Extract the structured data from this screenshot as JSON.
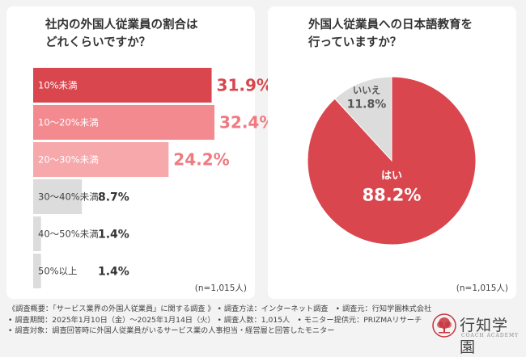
{
  "charts": [
    {
      "title_line1": "社内の外国人従業員の割合は",
      "title_line2": "どれくらいですか？",
      "n_label": "(n=1,015人)"
    },
    {
      "title_line1": "外国人従業員への日本語教育を",
      "title_line2": "行っていますか？",
      "n_label": "(n=1,015人)"
    }
  ],
  "chart_data": [
    {
      "type": "bar",
      "orientation": "horizontal",
      "title": "社内の外国人従業員の割合はどれくらいですか？",
      "categories": [
        "10%未満",
        "10〜20%未満",
        "20〜30%未満",
        "30〜40%未満",
        "40〜50%未満",
        "50%以上"
      ],
      "values": [
        31.9,
        32.4,
        24.2,
        8.7,
        1.4,
        1.4
      ],
      "value_labels": [
        "31.9%",
        "32.4%",
        "24.2%",
        "8.7%",
        "1.4%",
        "1.4%"
      ],
      "colors": [
        "#d9464e",
        "#f38a8f",
        "#f7a8ab",
        "#dcdcdc",
        "#dcdcdc",
        "#dcdcdc"
      ],
      "label_colors": [
        "#d9464e",
        "#f07a80",
        "#f07a80",
        "#333333",
        "#333333",
        "#333333"
      ]
    },
    {
      "type": "pie",
      "title": "外国人従業員への日本語教育を行っていますか？",
      "labels": [
        "はい",
        "いいえ"
      ],
      "values": [
        88.2,
        11.8
      ],
      "value_labels": [
        "88.2%",
        "11.8%"
      ],
      "colors": [
        "#d9464e",
        "#dcdcdc"
      ]
    }
  ],
  "footer": {
    "line1": "《調査概要：「サービス業界の外国人従業員」に関する調査 》 • 調査方法：インターネット調査　• 調査元：行知学園株式会社",
    "line2": "• 調査期間：2025年1月10日（金）〜2025年1月14日（火） • 調査人数：1,015人　• モニター提供元：PRIZMAリサーチ",
    "line3": "• 調査対象：調査回答時に外国人従業員がいるサービス業の人事担当・経営層と回答したモニター"
  },
  "logo": {
    "name": "行知学園",
    "sub": "COACH ACADEMY",
    "color": "#c8323c"
  }
}
